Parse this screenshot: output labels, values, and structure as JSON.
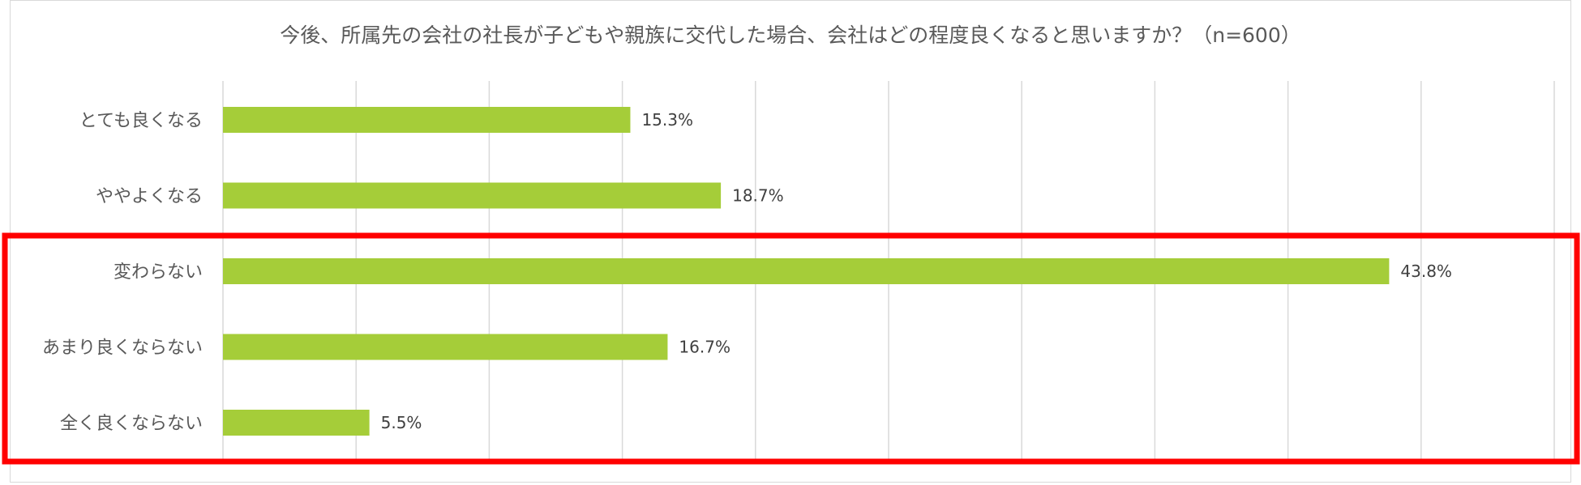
{
  "chart_data": {
    "type": "bar",
    "orientation": "horizontal",
    "title": "今後、所属先の会社の社長が子どもや親族に交代した場合、会社はどの程度良くなると思いますか？（n=600）",
    "categories": [
      "とても良くなる",
      "ややよくなる",
      "変わらない",
      "あまり良くならない",
      "全く良くならない"
    ],
    "values": [
      15.3,
      18.7,
      43.8,
      16.7,
      5.5
    ],
    "data_labels": [
      "15.3%",
      "18.7%",
      "43.8%",
      "16.7%",
      "5.5%"
    ],
    "xlim": [
      0,
      50
    ],
    "grid": true,
    "bar_color": "#a5cd39",
    "highlight_color": "#ff0000",
    "highlighted_categories": [
      "変わらない",
      "あまり良くならない",
      "全く良くならない"
    ]
  }
}
